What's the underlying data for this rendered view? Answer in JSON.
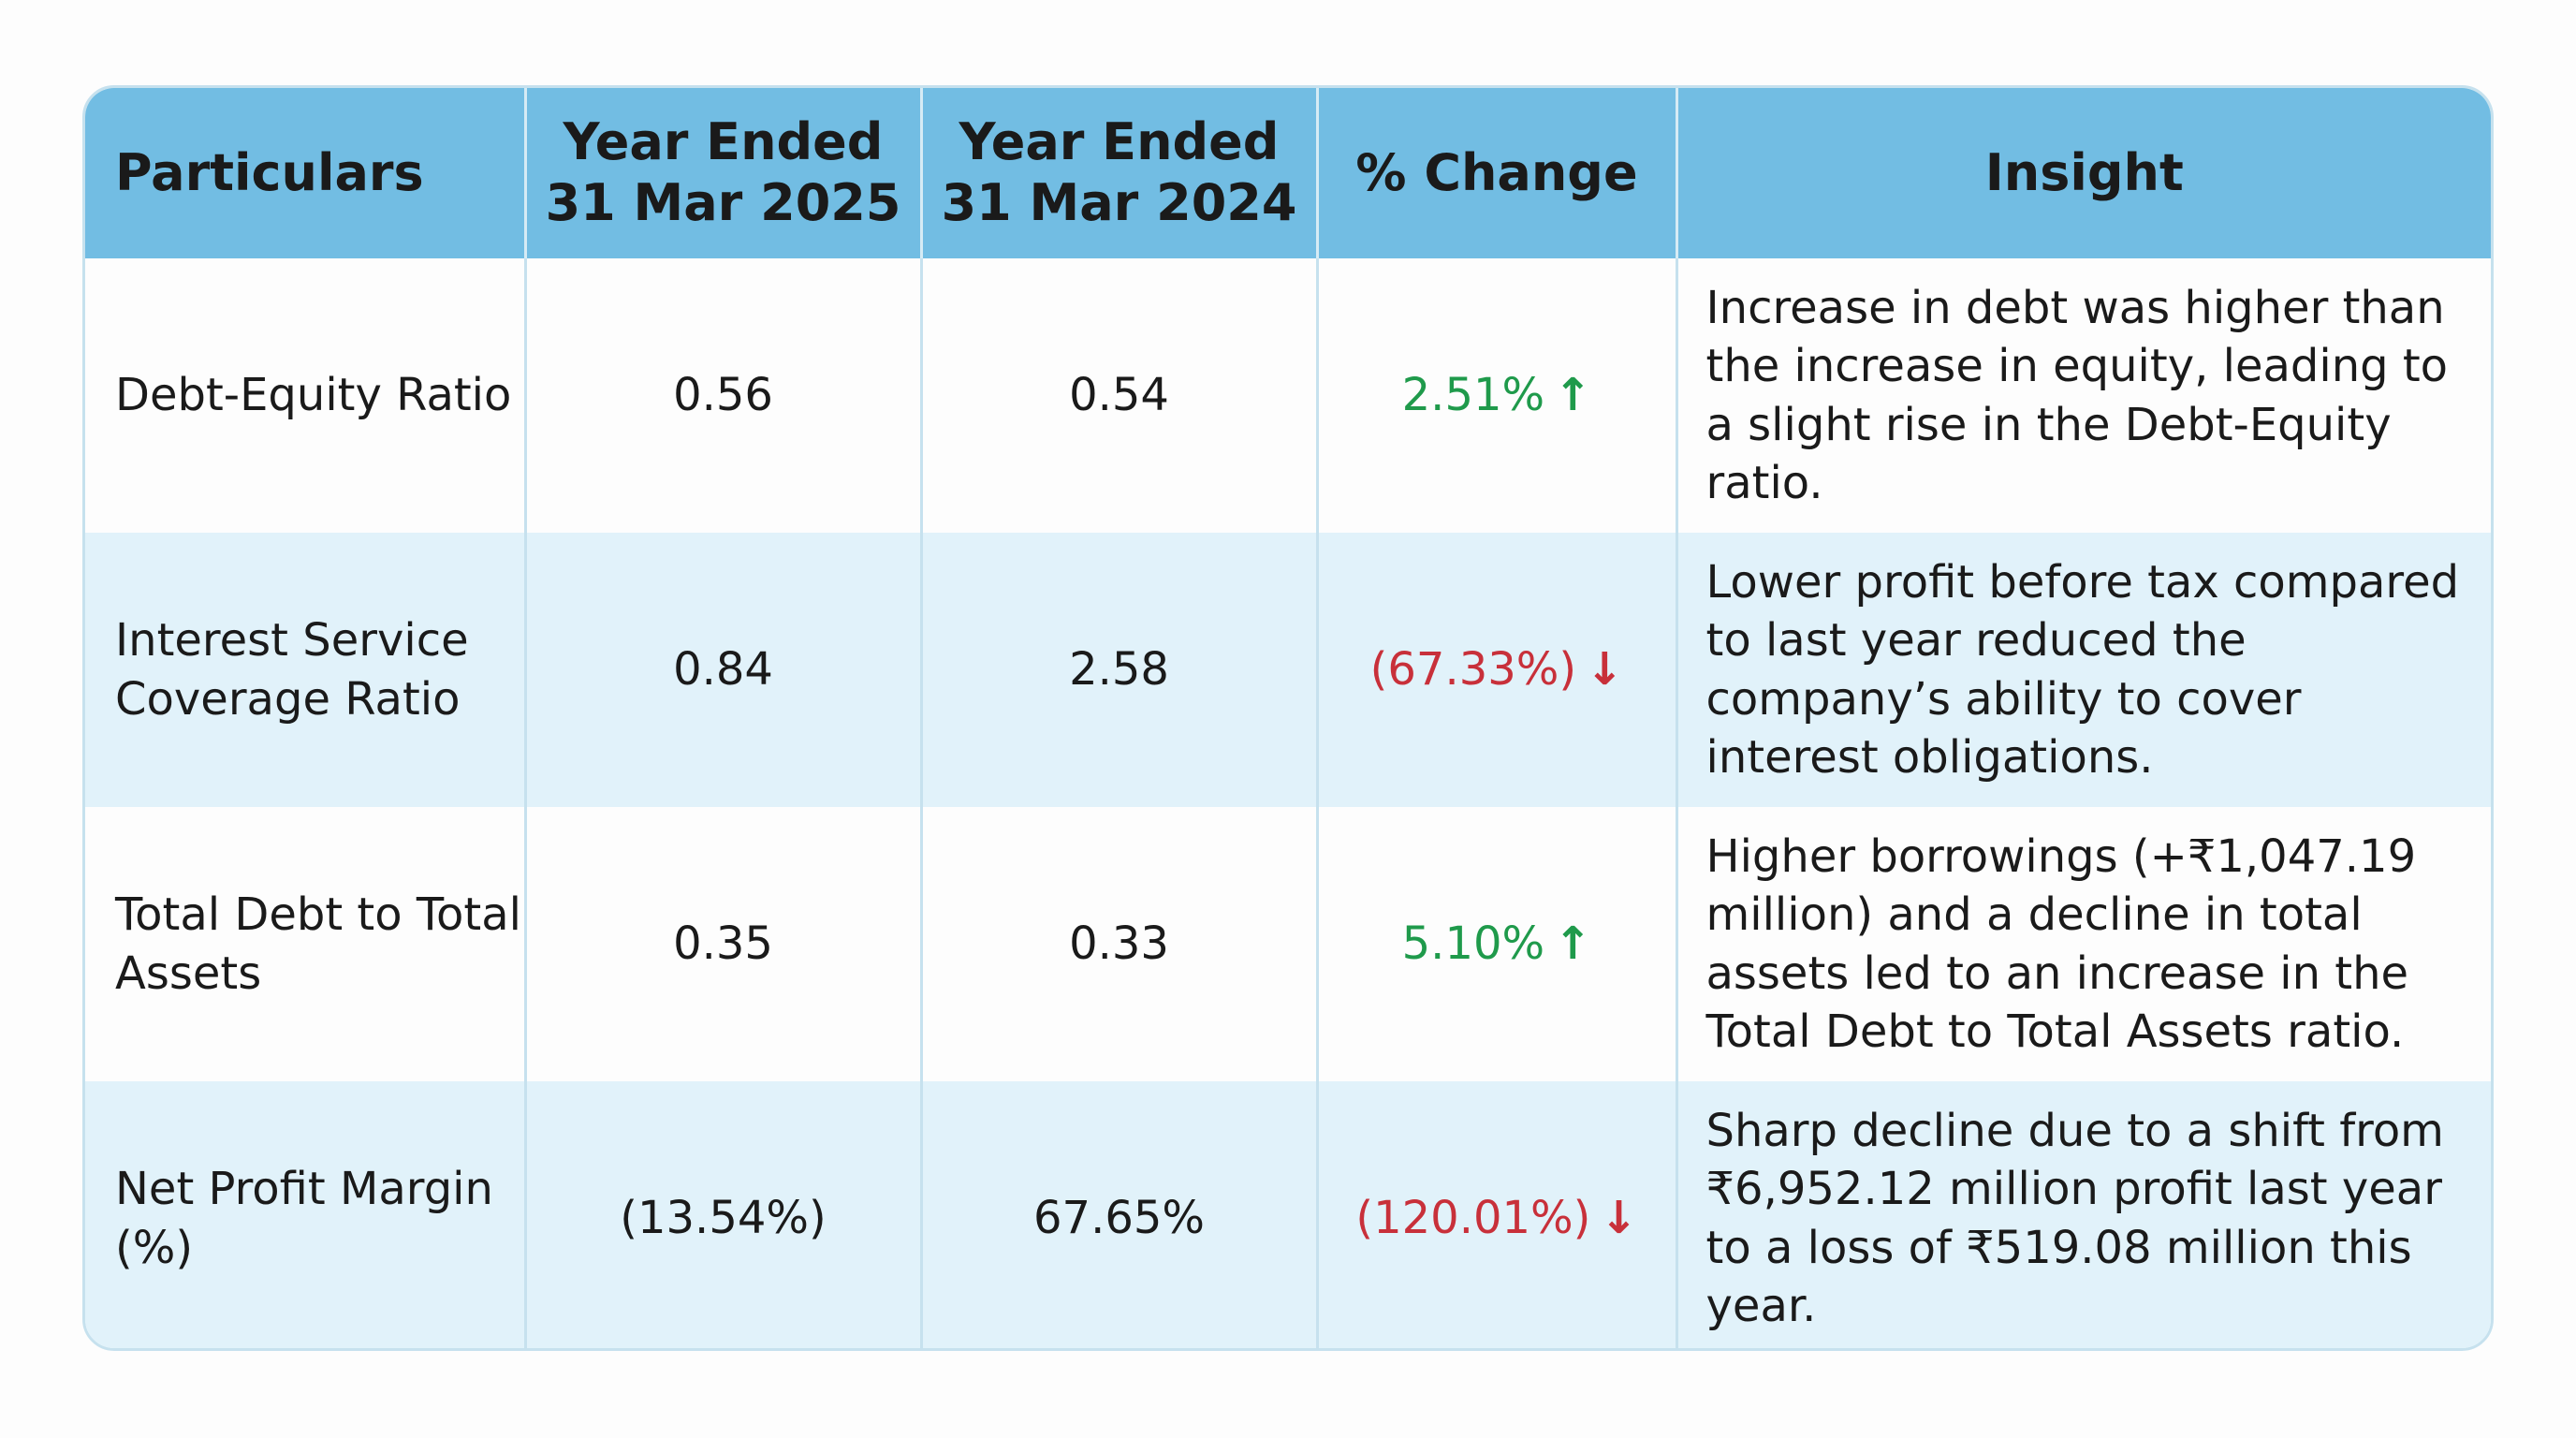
{
  "table": {
    "headers": [
      "Particulars",
      "Year Ended\n31 Mar 2025",
      "Year Ended\n31 Mar 2024",
      "% Change",
      "Insight"
    ],
    "rows": [
      {
        "particular": "Debt-Equity Ratio",
        "fy2025": "0.56",
        "fy2024": "0.54",
        "change": {
          "text": "2.51%",
          "arrow": "↑",
          "color": "#1f9a4b"
        },
        "insight": "Increase in debt was higher than the increase in equity, leading to a slight rise in the Debt-Equity ratio."
      },
      {
        "particular": "Interest Service Coverage Ratio",
        "fy2025": "0.84",
        "fy2024": "2.58",
        "change": {
          "text": "(67.33%)",
          "arrow": "↓",
          "color": "#c8303a"
        },
        "insight": "Lower profit before tax compared to last year reduced the company’s ability to cover interest obligations."
      },
      {
        "particular": "Total Debt to Total Assets",
        "fy2025": "0.35",
        "fy2024": "0.33",
        "change": {
          "text": "5.10%",
          "arrow": "↑",
          "color": "#1f9a4b"
        },
        "insight": "Higher borrowings (+₹1,047.19 million) and a decline in total assets led to an increase in the Total Debt to Total Assets ratio."
      },
      {
        "particular": "Net Profit Margin (%)",
        "fy2025": "(13.54%)",
        "fy2024": "67.65%",
        "change": {
          "text": "(120.01%)",
          "arrow": "↓",
          "color": "#c8303a"
        },
        "insight": "Sharp decline due to a shift from ₹6,952.12 million profit last year to a loss of ₹519.08 million this year."
      }
    ]
  }
}
